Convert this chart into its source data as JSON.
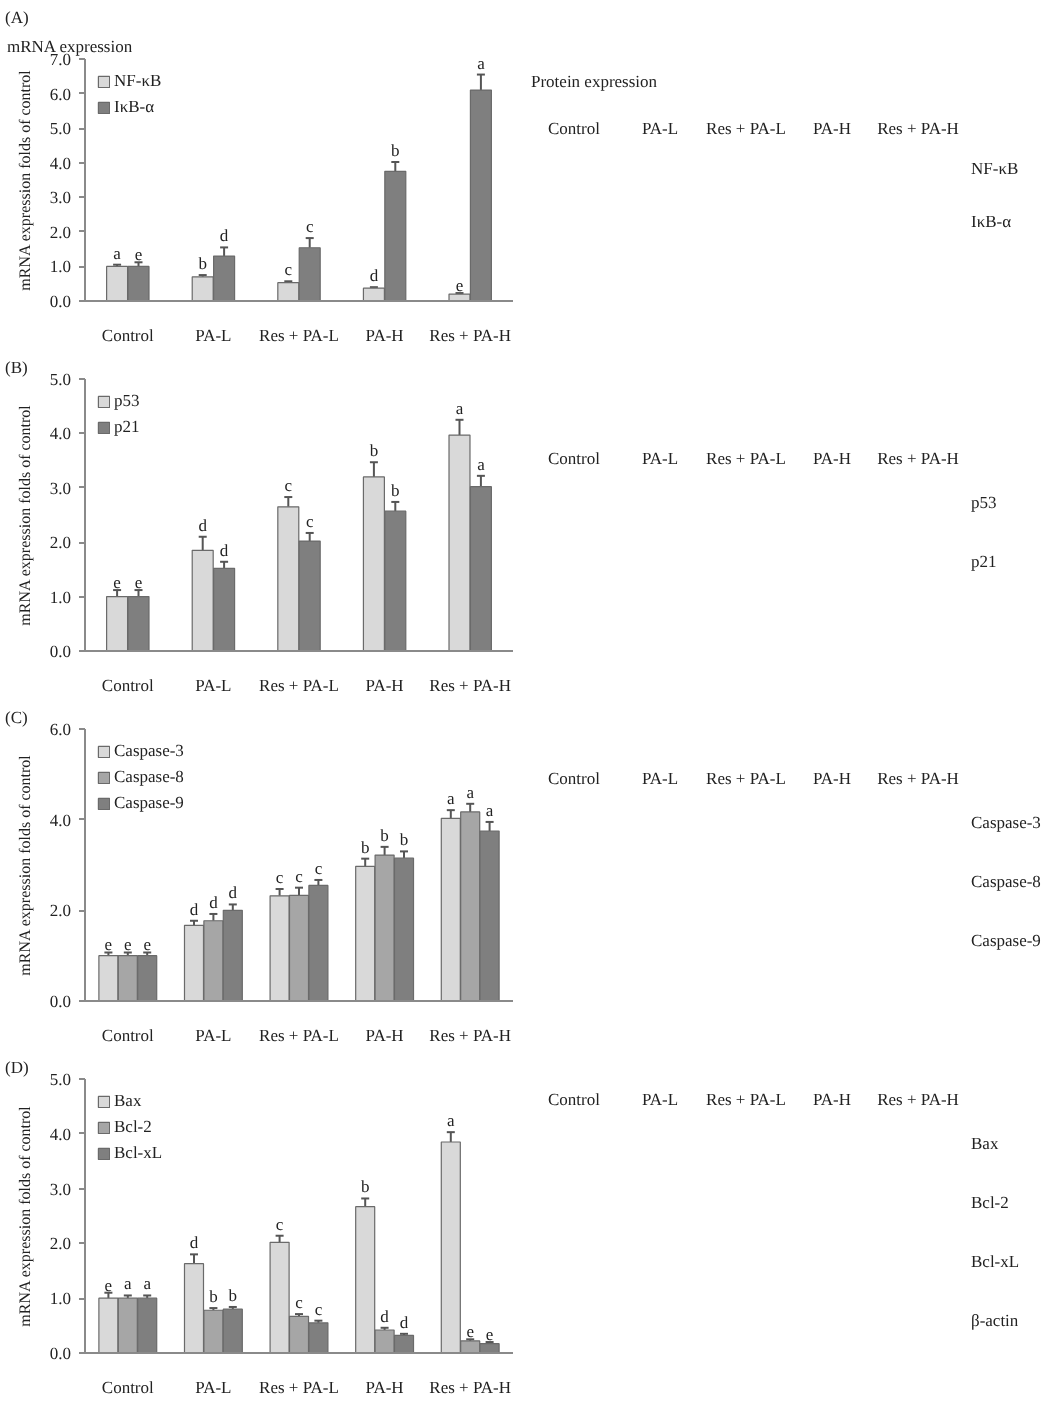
{
  "chart_data": [
    {
      "type": "bar",
      "title": "(A)",
      "subtitle": "mRNA expression",
      "ylabel": "mRNA expression folds of control",
      "categories": [
        "Control",
        "PA-L",
        "Res + PA-L",
        "PA-H",
        "Res + PA-H"
      ],
      "ylim": [
        0,
        7
      ],
      "yticks": [
        {
          "value": 0,
          "label": "0.0"
        },
        {
          "value": 1,
          "label": "1.0"
        },
        {
          "value": 2,
          "label": "2.0"
        },
        {
          "value": 3,
          "label": "3.0"
        },
        {
          "value": 4,
          "label": "4.0"
        },
        {
          "value": 5,
          "label": "5.0"
        },
        {
          "value": 6,
          "label": "6.0"
        },
        {
          "value": 7,
          "label": "7.0"
        }
      ],
      "legend": "top left",
      "series": [
        {
          "name": "NF-κB",
          "color": "#d9d9d9",
          "values": [
            1.0,
            0.7,
            0.53,
            0.37,
            0.2
          ],
          "errors": [
            [
              1.0,
              1.05
            ],
            [
              0.7,
              0.75
            ],
            [
              0.53,
              0.57
            ],
            [
              0.37,
              0.4
            ],
            [
              0.2,
              0.23
            ]
          ],
          "value_labels": [
            "a",
            "b",
            "c",
            "d",
            "e"
          ]
        },
        {
          "name": "IκB-α",
          "color": "#7f7f7f",
          "values": [
            1.0,
            1.3,
            1.54,
            3.75,
            6.1
          ],
          "errors": [
            [
              1.0,
              1.12
            ],
            [
              1.3,
              1.55
            ],
            [
              1.54,
              1.82
            ],
            [
              3.75,
              4.02
            ],
            [
              6.1,
              6.55
            ]
          ],
          "value_labels": [
            "e",
            "d",
            "c",
            "b",
            "a"
          ]
        }
      ]
    },
    {
      "type": "other",
      "title": "Protein expression",
      "categories": [
        "Control",
        "PA-L",
        "Res + PA-L",
        "PA-H",
        "Res + PA-H"
      ],
      "y_categories": [
        "NF-κB",
        "IκB-α"
      ]
    },
    {
      "type": "bar",
      "title": "(B)",
      "ylabel": "mRNA expression folds of control",
      "categories": [
        "Control",
        "PA-L",
        "Res + PA-L",
        "PA-H",
        "Res + PA-H"
      ],
      "ylim": [
        0,
        5
      ],
      "yticks": [
        {
          "value": 0,
          "label": "0.0"
        },
        {
          "value": 1,
          "label": "1.0"
        },
        {
          "value": 2,
          "label": "2.0"
        },
        {
          "value": 3,
          "label": "3.0"
        },
        {
          "value": 4,
          "label": "4.0"
        },
        {
          "value": 5,
          "label": "5.0"
        }
      ],
      "legend": "top left",
      "series": [
        {
          "name": "p53",
          "color": "#d9d9d9",
          "values": [
            1.0,
            1.85,
            2.65,
            3.2,
            3.97
          ],
          "errors": [
            [
              1.0,
              1.12
            ],
            [
              1.85,
              2.1
            ],
            [
              2.65,
              2.83
            ],
            [
              3.2,
              3.47
            ],
            [
              3.97,
              4.25
            ]
          ],
          "value_labels": [
            "e",
            "d",
            "c",
            "b",
            "a"
          ]
        },
        {
          "name": "p21",
          "color": "#7f7f7f",
          "values": [
            1.0,
            1.52,
            2.02,
            2.57,
            3.02
          ],
          "errors": [
            [
              1.0,
              1.12
            ],
            [
              1.52,
              1.64
            ],
            [
              2.02,
              2.17
            ],
            [
              2.57,
              2.74
            ],
            [
              3.02,
              3.22
            ]
          ],
          "value_labels": [
            "e",
            "d",
            "c",
            "b",
            "a"
          ]
        }
      ]
    },
    {
      "type": "other",
      "categories": [
        "Control",
        "PA-L",
        "Res + PA-L",
        "PA-H",
        "Res + PA-H"
      ],
      "y_categories": [
        "p53",
        "p21"
      ]
    },
    {
      "type": "bar",
      "title": "(C)",
      "ylabel": "mRNA expression folds of control",
      "categories": [
        "Control",
        "PA-L",
        "Res + PA-L",
        "PA-H",
        "Res + PA-H"
      ],
      "ylim": [
        0,
        6
      ],
      "yticks": [
        {
          "value": 0,
          "label": "0.0"
        },
        {
          "value": 2,
          "label": "2.0"
        },
        {
          "value": 4,
          "label": "4.0"
        },
        {
          "value": 6,
          "label": "6.0"
        }
      ],
      "legend": "top left",
      "series": [
        {
          "name": "Caspase-3",
          "color": "#d9d9d9",
          "values": [
            1.0,
            1.67,
            2.32,
            2.97,
            4.03
          ],
          "errors": [
            [
              1.0,
              1.07
            ],
            [
              1.67,
              1.77
            ],
            [
              2.32,
              2.47
            ],
            [
              2.97,
              3.14
            ],
            [
              4.03,
              4.21
            ]
          ],
          "value_labels": [
            "e",
            "d",
            "c",
            "b",
            "a"
          ]
        },
        {
          "name": "Caspase-8",
          "color": "#a6a6a6",
          "values": [
            1.0,
            1.77,
            2.33,
            3.22,
            4.17
          ],
          "errors": [
            [
              1.0,
              1.07
            ],
            [
              1.77,
              1.92
            ],
            [
              2.33,
              2.5
            ],
            [
              3.22,
              3.4
            ],
            [
              4.17,
              4.35
            ]
          ],
          "value_labels": [
            "e",
            "d",
            "c",
            "b",
            "a"
          ]
        },
        {
          "name": "Caspase-9",
          "color": "#7f7f7f",
          "values": [
            1.0,
            2.0,
            2.55,
            3.15,
            3.75
          ],
          "errors": [
            [
              1.0,
              1.07
            ],
            [
              2.0,
              2.13
            ],
            [
              2.55,
              2.67
            ],
            [
              3.15,
              3.3
            ],
            [
              3.75,
              3.95
            ]
          ],
          "value_labels": [
            "e",
            "d",
            "c",
            "b",
            "a"
          ]
        }
      ]
    },
    {
      "type": "other",
      "categories": [
        "Control",
        "PA-L",
        "Res + PA-L",
        "PA-H",
        "Res + PA-H"
      ],
      "y_categories": [
        "Caspase-3",
        "Caspase-8",
        "Caspase-9"
      ]
    },
    {
      "type": "bar",
      "title": "(D)",
      "ylabel": "mRNA expression folds of control",
      "categories": [
        "Control",
        "PA-L",
        "Res + PA-L",
        "PA-H",
        "Res + PA-H"
      ],
      "ylim": [
        0,
        5
      ],
      "yticks": [
        {
          "value": 0,
          "label": "0.0"
        },
        {
          "value": 1,
          "label": "1.0"
        },
        {
          "value": 2,
          "label": "2.0"
        },
        {
          "value": 3,
          "label": "3.0"
        },
        {
          "value": 4,
          "label": "4.0"
        },
        {
          "value": 5,
          "label": "5.0"
        }
      ],
      "legend": "top left",
      "series": [
        {
          "name": "Bax",
          "color": "#d9d9d9",
          "values": [
            1.0,
            1.63,
            2.02,
            2.67,
            3.85
          ],
          "errors": [
            [
              1.0,
              1.1
            ],
            [
              1.63,
              1.8
            ],
            [
              2.02,
              2.14
            ],
            [
              2.67,
              2.82
            ],
            [
              3.85,
              4.03
            ]
          ],
          "value_labels": [
            "e",
            "d",
            "c",
            "b",
            "a"
          ]
        },
        {
          "name": "Bcl-2",
          "color": "#a6a6a6",
          "values": [
            1.0,
            0.78,
            0.67,
            0.42,
            0.22
          ],
          "errors": [
            [
              1.0,
              1.05
            ],
            [
              0.78,
              0.82
            ],
            [
              0.67,
              0.71
            ],
            [
              0.42,
              0.46
            ],
            [
              0.22,
              0.25
            ]
          ],
          "value_labels": [
            "a",
            "b",
            "c",
            "d",
            "e"
          ]
        },
        {
          "name": "Bcl-xL",
          "color": "#7f7f7f",
          "values": [
            1.0,
            0.8,
            0.55,
            0.32,
            0.17
          ],
          "errors": [
            [
              1.0,
              1.05
            ],
            [
              0.8,
              0.84
            ],
            [
              0.55,
              0.59
            ],
            [
              0.32,
              0.35
            ],
            [
              0.17,
              0.2
            ]
          ],
          "value_labels": [
            "a",
            "b",
            "c",
            "d",
            "e"
          ]
        }
      ]
    },
    {
      "type": "other",
      "categories": [
        "Control",
        "PA-L",
        "Res + PA-L",
        "PA-H",
        "Res + PA-H"
      ],
      "y_categories": [
        "Bax",
        "Bcl-2",
        "Bcl-xL",
        "β-actin"
      ]
    }
  ]
}
